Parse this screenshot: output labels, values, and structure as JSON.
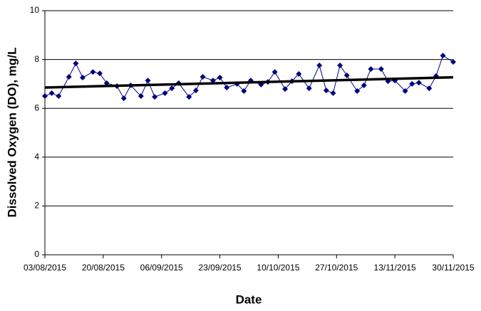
{
  "chart_data": {
    "type": "line",
    "x_label": "Date",
    "y_label": "Dissolved Oxygen (DO), mg/L",
    "x": [
      "03/08/2015",
      "05/08/2015",
      "07/08/2015",
      "10/08/2015",
      "12/08/2015",
      "14/08/2015",
      "17/08/2015",
      "19/08/2015",
      "21/08/2015",
      "24/08/2015",
      "26/08/2015",
      "28/08/2015",
      "31/08/2015",
      "02/09/2015",
      "04/09/2015",
      "07/09/2015",
      "09/09/2015",
      "11/09/2015",
      "14/09/2015",
      "16/09/2015",
      "18/09/2015",
      "21/09/2015",
      "23/09/2015",
      "25/09/2015",
      "28/09/2015",
      "30/09/2015",
      "02/10/2015",
      "05/10/2015",
      "07/10/2015",
      "09/10/2015",
      "12/10/2015",
      "14/10/2015",
      "16/10/2015",
      "19/10/2015",
      "22/10/2015",
      "24/10/2015",
      "26/10/2015",
      "28/10/2015",
      "30/10/2015",
      "02/11/2015",
      "04/11/2015",
      "06/11/2015",
      "09/11/2015",
      "11/11/2015",
      "13/11/2015",
      "16/11/2015",
      "18/11/2015",
      "20/11/2015",
      "23/11/2015",
      "25/11/2015",
      "27/11/2015",
      "30/11/2015"
    ],
    "series": [
      {
        "color": "#000080",
        "values": [
          6.5,
          6.62,
          6.5,
          7.29,
          7.84,
          7.26,
          7.49,
          7.43,
          7.03,
          6.91,
          6.41,
          6.94,
          6.5,
          7.14,
          6.47,
          6.62,
          6.82,
          7.03,
          6.47,
          6.73,
          7.29,
          7.14,
          7.26,
          6.85,
          7.0,
          6.71,
          7.14,
          6.97,
          7.08,
          7.49,
          6.79,
          7.11,
          7.41,
          6.82,
          7.76,
          6.73,
          6.62,
          7.76,
          7.35,
          6.71,
          6.94,
          7.61,
          7.61,
          7.11,
          7.14,
          6.71,
          7.0,
          7.05,
          6.82,
          7.32,
          8.16,
          7.9
        ]
      }
    ],
    "trendline": {
      "x": [
        "03/08/2015",
        "30/11/2015"
      ],
      "values": [
        6.85,
        7.27
      ],
      "color": "#000000"
    },
    "xlim": [
      "03/08/2015",
      "30/11/2015"
    ],
    "xticks": [
      "03/08/2015",
      "20/08/2015",
      "06/09/2015",
      "23/09/2015",
      "10/10/2015",
      "27/10/2015",
      "13/11/2015",
      "30/11/2015"
    ],
    "ylim": [
      0,
      10
    ],
    "yticks": [
      0,
      2,
      4,
      6,
      8,
      10
    ],
    "grid": true
  }
}
